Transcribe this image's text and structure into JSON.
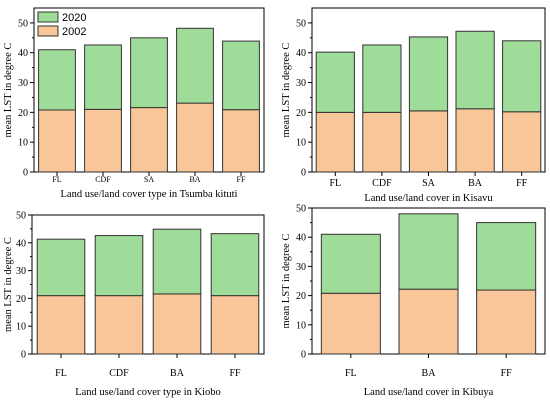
{
  "colors": {
    "2020": "#9fdc99",
    "2002": "#f8c699",
    "stroke": "#333333"
  },
  "legend": {
    "2020": "2020",
    "2002": "2002"
  },
  "chart_data": [
    {
      "type": "bar",
      "stacked": true,
      "xlabel": "Land use/land cover type in Tsumba kituti",
      "ylabel": "mean LST in degree C",
      "categories": [
        "FL",
        "CDF",
        "SA",
        "BA",
        "FF"
      ],
      "series": [
        {
          "name": "2002",
          "values": [
            20.8,
            21.0,
            21.6,
            23.1,
            20.9
          ]
        },
        {
          "name": "2020",
          "values": [
            20.2,
            21.6,
            23.4,
            25.1,
            23.0
          ]
        }
      ],
      "ylim": [
        0,
        55
      ],
      "yticks": [
        0,
        10,
        20,
        30,
        40,
        50
      ],
      "legend_position": "top-left"
    },
    {
      "type": "bar",
      "stacked": true,
      "xlabel": "Land use/land cover in Kisavu",
      "ylabel": "mean LST in degree C",
      "categories": [
        "FL",
        "CDF",
        "SA",
        "BA",
        "FF"
      ],
      "series": [
        {
          "name": "2002",
          "values": [
            20.0,
            20.0,
            20.5,
            21.2,
            20.2
          ]
        },
        {
          "name": "2020",
          "values": [
            20.2,
            22.6,
            24.8,
            26.0,
            23.8
          ]
        }
      ],
      "ylim": [
        0,
        55
      ],
      "yticks": [
        0,
        10,
        20,
        30,
        40,
        50
      ]
    },
    {
      "type": "bar",
      "stacked": true,
      "xlabel": "Land use/land cover type in Kiobo",
      "ylabel": "mean LST in degree C",
      "categories": [
        "FL",
        "CDF",
        "BA",
        "FF"
      ],
      "series": [
        {
          "name": "2002",
          "values": [
            21.0,
            21.0,
            21.6,
            21.0
          ]
        },
        {
          "name": "2020",
          "values": [
            20.3,
            21.6,
            23.3,
            22.3
          ]
        }
      ],
      "ylim": [
        0,
        50
      ],
      "yticks": [
        0,
        10,
        20,
        30,
        40,
        50
      ]
    },
    {
      "type": "bar",
      "stacked": true,
      "xlabel": "Land use/land cover in Kibuya",
      "ylabel": "mean LST in degree C",
      "categories": [
        "FL",
        "BA",
        "FF"
      ],
      "series": [
        {
          "name": "2002",
          "values": [
            20.8,
            22.2,
            21.9
          ]
        },
        {
          "name": "2020",
          "values": [
            20.2,
            25.8,
            23.1
          ]
        }
      ],
      "ylim": [
        0,
        50
      ],
      "yticks": [
        0,
        10,
        20,
        30,
        40,
        50
      ]
    }
  ]
}
